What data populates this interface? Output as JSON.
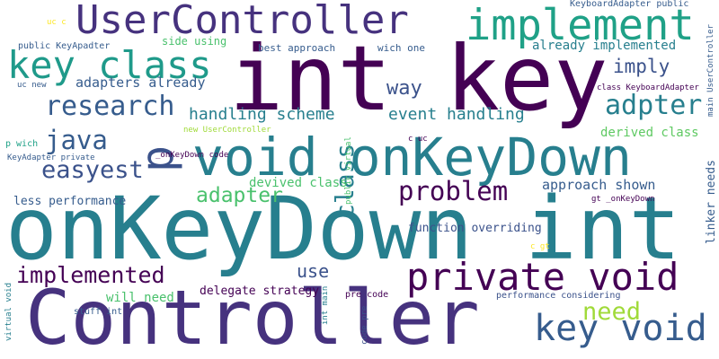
{
  "colors": {
    "background": "#ffffff",
    "palette": [
      "#440154",
      "#46327e",
      "#365c8d",
      "#277f8e",
      "#1fa187",
      "#4ac16d",
      "#a0da39",
      "#fde725"
    ]
  },
  "words": [
    {
      "text": "int key",
      "color": "#440154"
    },
    {
      "text": "onKeyDown int",
      "color": "#277f8e"
    },
    {
      "text": "Controller",
      "color": "#46327e"
    },
    {
      "text": "void onKeyDown",
      "color": "#277f8e"
    },
    {
      "text": "UserController",
      "color": "#46327e"
    },
    {
      "text": "implement",
      "color": "#1fa187"
    },
    {
      "text": "key class",
      "color": "#1f9a8a"
    },
    {
      "text": "private void",
      "color": "#440154"
    },
    {
      "text": "key void",
      "color": "#365c8d"
    },
    {
      "text": "p",
      "color": "#3b528b"
    },
    {
      "text": "class",
      "color": "#277f8e"
    },
    {
      "text": "research",
      "color": "#365c8d"
    },
    {
      "text": "adpter",
      "color": "#277f8e"
    },
    {
      "text": "java",
      "color": "#365c8d"
    },
    {
      "text": "easyest",
      "color": "#3b528b"
    },
    {
      "text": "problem",
      "color": "#440154"
    },
    {
      "text": "implemented",
      "color": "#440154"
    },
    {
      "text": "need",
      "color": "#a0da39"
    },
    {
      "text": "way",
      "color": "#3b528b"
    },
    {
      "text": "imply",
      "color": "#3b528b"
    },
    {
      "text": "adapter",
      "color": "#4ac16d"
    },
    {
      "text": "handling scheme",
      "color": "#277f8e"
    },
    {
      "text": "event handling",
      "color": "#277f8e"
    },
    {
      "text": "adapters already",
      "color": "#365c8d"
    },
    {
      "text": "already implemented",
      "color": "#277f8e"
    },
    {
      "text": "approach shown",
      "color": "#365c8d"
    },
    {
      "text": "use",
      "color": "#3b528b"
    },
    {
      "text": "will need",
      "color": "#4ac16d"
    },
    {
      "text": "derived class",
      "color": "#5ec962"
    },
    {
      "text": "devived class",
      "color": "#4ac16d"
    },
    {
      "text": "delegate strategy",
      "color": "#440154"
    },
    {
      "text": "less performance",
      "color": "#365c8d"
    },
    {
      "text": "function overriding",
      "color": "#3b528b"
    },
    {
      "text": "linker needs",
      "color": "#365c8d"
    },
    {
      "text": "side using",
      "color": "#4ac16d"
    },
    {
      "text": "best approach",
      "color": "#365c8d"
    },
    {
      "text": "wich one",
      "color": "#365c8d"
    },
    {
      "text": "public KeyApadter",
      "color": "#365c8d"
    },
    {
      "text": "KeyboardAdapter public",
      "color": "#365c8d"
    },
    {
      "text": "class KeyboardAdapter",
      "color": "#440154"
    },
    {
      "text": "main UserController",
      "color": "#365c8d"
    },
    {
      "text": "uc c",
      "color": "#fde725"
    },
    {
      "text": "uc new",
      "color": "#365c8d"
    },
    {
      "text": "p wich",
      "color": "#1fa187"
    },
    {
      "text": "KeyAdapter private",
      "color": "#365c8d"
    },
    {
      "text": "new UserController",
      "color": "#a0da39"
    },
    {
      "text": "public virtual",
      "color": "#4ac16d"
    },
    {
      "text": "c uc",
      "color": "#440154"
    },
    {
      "text": "_onKeyDown code",
      "color": "#440154"
    },
    {
      "text": "gt _onKeyDown",
      "color": "#440154"
    },
    {
      "text": "pre code",
      "color": "#440154"
    },
    {
      "text": "performance considering",
      "color": "#3b528b"
    },
    {
      "text": "c gt",
      "color": "#fde725"
    },
    {
      "text": "stuff int",
      "color": "#365c8d"
    },
    {
      "text": "int main",
      "color": "#277f8e"
    },
    {
      "text": "code pre",
      "color": "#3b528b"
    },
    {
      "text": "virtual void",
      "color": "#277f8e"
    }
  ]
}
